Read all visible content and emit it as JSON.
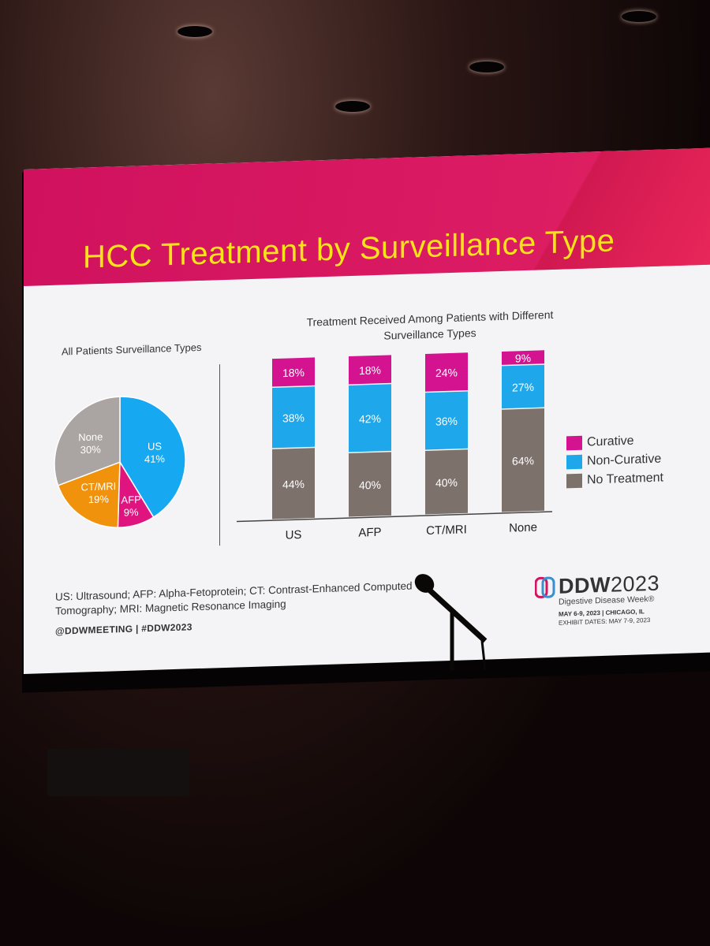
{
  "slide": {
    "title": "HCC Treatment by Surveillance Type",
    "pie_title": "All Patients Surveillance Types",
    "bar_title_line1": "Treatment Received Among Patients with Different",
    "bar_title_line2": "Surveillance Types",
    "footnote_line1": "US: Ultrasound; AFP: Alpha-Fetoprotein; CT: Contrast-Enhanced Computed",
    "footnote_line2": "Tomography; MRI: Magnetic Resonance Imaging",
    "handle": "@DDWMEETING  |  #DDW2023"
  },
  "branding": {
    "name_bold": "DDW",
    "name_year": "2023",
    "subtitle": "Digestive Disease Week®",
    "dates": "MAY 6-9, 2023 | CHICAGO, IL",
    "exhibit": "EXHIBIT DATES: MAY 7-9, 2023"
  },
  "colors": {
    "header": "#d3135f",
    "title_text": "#f7e319",
    "curative": "#d3138f",
    "non_curative": "#1ea7ea",
    "no_treatment": "#7d716b",
    "us": "#16a8f0",
    "afp": "#e0147f",
    "ctmri": "#f0920c",
    "none": "#aaa4a2"
  },
  "chart_data": [
    {
      "type": "pie",
      "title": "All Patients Surveillance Types",
      "slices": [
        {
          "label": "US",
          "value": 41,
          "display": "41%",
          "color": "#16a8f0"
        },
        {
          "label": "AFP",
          "value": 9,
          "display": "9%",
          "color": "#e0147f"
        },
        {
          "label": "CT/MRI",
          "value": 19,
          "display": "19%",
          "color": "#f0920c"
        },
        {
          "label": "None",
          "value": 30,
          "display": "30%",
          "color": "#aaa4a2"
        }
      ]
    },
    {
      "type": "bar",
      "stacked": true,
      "title": "Treatment Received Among Patients with Different Surveillance Types",
      "categories": [
        "US",
        "AFP",
        "CT/MRI",
        "None"
      ],
      "series": [
        {
          "name": "No Treatment",
          "values": [
            44,
            40,
            40,
            64
          ],
          "color": "#7d716b"
        },
        {
          "name": "Non-Curative",
          "values": [
            38,
            42,
            36,
            27
          ],
          "color": "#1ea7ea"
        },
        {
          "name": "Curative",
          "values": [
            18,
            18,
            24,
            9
          ],
          "color": "#d3138f"
        }
      ],
      "legend_order": [
        "Curative",
        "Non-Curative",
        "No Treatment"
      ],
      "legend_position": "right",
      "ylim": [
        0,
        100
      ],
      "grid": false
    }
  ]
}
